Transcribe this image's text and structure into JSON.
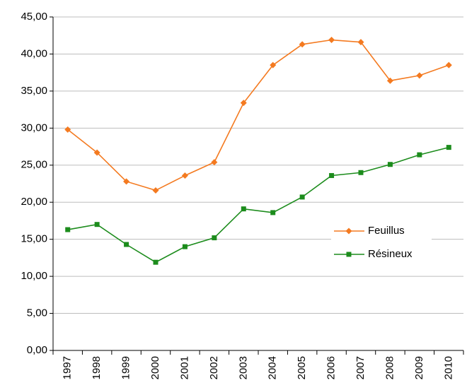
{
  "chart_data": {
    "type": "line",
    "categories": [
      "1997",
      "1998",
      "1999",
      "2000",
      "2001",
      "2002",
      "2003",
      "2004",
      "2005",
      "2006",
      "2007",
      "2008",
      "2009",
      "2010"
    ],
    "series": [
      {
        "name": "Feuillus",
        "color": "#f47a20",
        "marker": "diamond",
        "values": [
          29.8,
          26.7,
          22.8,
          21.6,
          23.6,
          25.4,
          33.4,
          38.5,
          41.3,
          41.9,
          41.6,
          36.4,
          37.1,
          38.5
        ]
      },
      {
        "name": "Résineux",
        "color": "#1c8c1c",
        "marker": "square",
        "values": [
          16.3,
          17.0,
          14.3,
          11.9,
          14.0,
          15.2,
          19.1,
          18.6,
          20.7,
          23.6,
          24.0,
          25.1,
          26.4,
          27.4
        ]
      }
    ],
    "ylim": [
      0,
      45
    ],
    "yticks": [
      {
        "value": 0,
        "label": "0,00"
      },
      {
        "value": 5,
        "label": "5,00"
      },
      {
        "value": 10,
        "label": "10,00"
      },
      {
        "value": 15,
        "label": "15,00"
      },
      {
        "value": 20,
        "label": "20,00"
      },
      {
        "value": 25,
        "label": "25,00"
      },
      {
        "value": 30,
        "label": "30,00"
      },
      {
        "value": 35,
        "label": "35,00"
      },
      {
        "value": 40,
        "label": "40,00"
      },
      {
        "value": 45,
        "label": "45,00"
      }
    ],
    "grid": true,
    "legend": "right"
  }
}
